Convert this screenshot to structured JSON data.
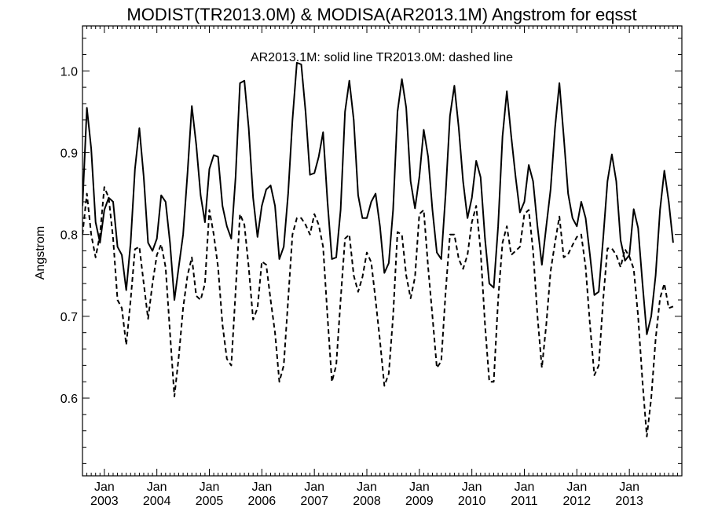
{
  "chart_data": {
    "type": "line",
    "title": "MODIST(TR2013.0M) & MODISA(AR2013.1M)  Angstrom for eqsst",
    "annotation": "AR2013.1M: solid line   TR2013.0M: dashed line",
    "ylabel": "Angstrom",
    "xlabel": "",
    "x_axis": "monthly, Aug 2002 – Dec 2013",
    "x_start": "2002-08",
    "x_end": "2014-01",
    "ylim": [
      0.505,
      1.055
    ],
    "y_ticks": [
      0.6,
      0.7,
      0.8,
      0.9,
      1.0
    ],
    "y_tick_labels": [
      "0.6",
      "0.7",
      "0.8",
      "0.9",
      "1.0"
    ],
    "x_tick_month": "Jan",
    "x_tick_years": [
      "2003",
      "2004",
      "2005",
      "2006",
      "2007",
      "2008",
      "2009",
      "2010",
      "2011",
      "2012",
      "2013"
    ],
    "grid": false,
    "series": [
      {
        "name": "AR2013.1M",
        "style": "solid",
        "color": "#000000",
        "start": "2002-08",
        "values": [
          0.835,
          0.955,
          0.905,
          0.815,
          0.79,
          0.83,
          0.845,
          0.84,
          0.785,
          0.775,
          0.732,
          0.79,
          0.88,
          0.93,
          0.87,
          0.79,
          0.78,
          0.795,
          0.848,
          0.84,
          0.79,
          0.72,
          0.76,
          0.8,
          0.875,
          0.957,
          0.91,
          0.848,
          0.815,
          0.88,
          0.897,
          0.895,
          0.835,
          0.81,
          0.795,
          0.87,
          0.985,
          0.988,
          0.93,
          0.845,
          0.797,
          0.835,
          0.855,
          0.86,
          0.835,
          0.77,
          0.785,
          0.85,
          0.94,
          1.01,
          1.008,
          0.95,
          0.873,
          0.875,
          0.895,
          0.925,
          0.84,
          0.77,
          0.772,
          0.83,
          0.95,
          0.988,
          0.94,
          0.848,
          0.82,
          0.82,
          0.84,
          0.85,
          0.81,
          0.753,
          0.765,
          0.83,
          0.95,
          0.99,
          0.955,
          0.865,
          0.832,
          0.87,
          0.928,
          0.895,
          0.83,
          0.778,
          0.77,
          0.85,
          0.945,
          0.982,
          0.93,
          0.865,
          0.82,
          0.845,
          0.89,
          0.87,
          0.795,
          0.74,
          0.735,
          0.81,
          0.92,
          0.975,
          0.92,
          0.87,
          0.827,
          0.84,
          0.885,
          0.865,
          0.81,
          0.763,
          0.81,
          0.855,
          0.93,
          0.985,
          0.92,
          0.85,
          0.82,
          0.81,
          0.84,
          0.82,
          0.775,
          0.726,
          0.73,
          0.795,
          0.865,
          0.898,
          0.865,
          0.793,
          0.768,
          0.775,
          0.831,
          0.808,
          0.74,
          0.678,
          0.7,
          0.75,
          0.83,
          0.878,
          0.84,
          0.79
        ]
      },
      {
        "name": "TR2013.0M",
        "style": "dashed",
        "color": "#000000",
        "start": "2002-08",
        "values": [
          0.8,
          0.85,
          0.8,
          0.772,
          0.8,
          0.858,
          0.845,
          0.795,
          0.72,
          0.71,
          0.665,
          0.72,
          0.782,
          0.785,
          0.74,
          0.697,
          0.74,
          0.775,
          0.788,
          0.76,
          0.68,
          0.602,
          0.65,
          0.71,
          0.75,
          0.772,
          0.725,
          0.72,
          0.74,
          0.83,
          0.8,
          0.76,
          0.69,
          0.648,
          0.64,
          0.73,
          0.825,
          0.812,
          0.76,
          0.696,
          0.71,
          0.767,
          0.763,
          0.72,
          0.68,
          0.62,
          0.64,
          0.72,
          0.8,
          0.82,
          0.82,
          0.812,
          0.8,
          0.825,
          0.812,
          0.785,
          0.7,
          0.62,
          0.64,
          0.72,
          0.795,
          0.8,
          0.75,
          0.73,
          0.748,
          0.778,
          0.766,
          0.72,
          0.67,
          0.615,
          0.63,
          0.7,
          0.803,
          0.8,
          0.75,
          0.722,
          0.748,
          0.825,
          0.83,
          0.76,
          0.7,
          0.637,
          0.645,
          0.73,
          0.8,
          0.8,
          0.77,
          0.758,
          0.775,
          0.815,
          0.835,
          0.78,
          0.69,
          0.62,
          0.62,
          0.72,
          0.79,
          0.81,
          0.775,
          0.78,
          0.785,
          0.825,
          0.83,
          0.78,
          0.7,
          0.637,
          0.69,
          0.755,
          0.79,
          0.822,
          0.772,
          0.776,
          0.787,
          0.797,
          0.8,
          0.76,
          0.69,
          0.628,
          0.64,
          0.72,
          0.783,
          0.783,
          0.775,
          0.76,
          0.782,
          0.773,
          0.758,
          0.7,
          0.62,
          0.553,
          0.6,
          0.672,
          0.722,
          0.74,
          0.71,
          0.712
        ]
      }
    ]
  }
}
